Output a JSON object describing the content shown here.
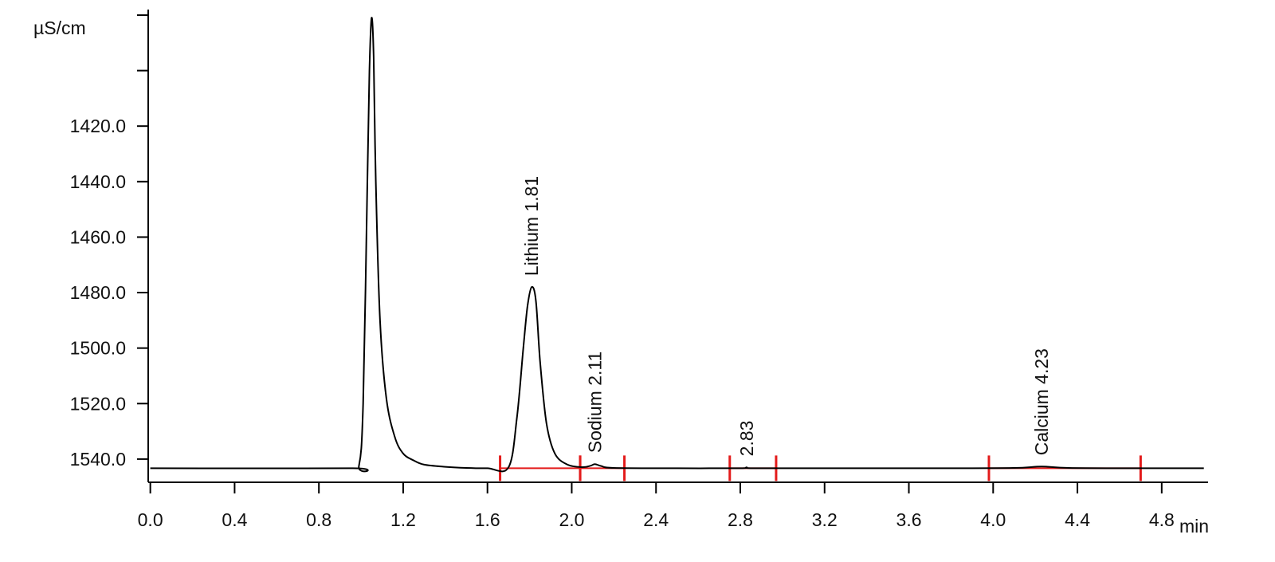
{
  "chart_data": {
    "type": "line",
    "title": "",
    "ylabel": "µS/cm",
    "xlabel": "min",
    "x_ticks": [
      0.0,
      0.4,
      0.8,
      1.2,
      1.6,
      2.0,
      2.4,
      2.8,
      3.2,
      3.6,
      4.0,
      4.4,
      4.8
    ],
    "x_tick_labels": [
      "0.0",
      "0.4",
      "0.8",
      "1.2",
      "1.6",
      "2.0",
      "2.4",
      "2.8",
      "3.2",
      "3.6",
      "4.0",
      "4.4",
      "4.8"
    ],
    "y_ticks": [
      1420.0,
      1440.0,
      1460.0,
      1480.0,
      1500.0,
      1520.0,
      1540.0
    ],
    "y_tick_labels": [
      "1420.0",
      "1440.0",
      "1460.0",
      "1480.0",
      "1500.0",
      "1520.0",
      "1540.0"
    ],
    "xlim": [
      -0.01,
      5.02
    ],
    "ylim": [
      1547.5,
      1378.0
    ],
    "baseline": 1543.3,
    "grid": false,
    "series": [
      {
        "color": "#000000",
        "x": [
          0.0,
          0.95,
          0.99,
          1.01,
          1.03,
          1.04,
          1.05,
          1.06,
          1.07,
          1.09,
          1.12,
          1.16,
          1.2,
          1.25,
          1.3,
          1.4,
          1.5,
          1.6,
          1.7,
          1.74,
          1.77,
          1.79,
          1.81,
          1.83,
          1.85,
          1.88,
          1.92,
          1.98,
          2.05,
          2.09,
          2.11,
          2.14,
          2.2,
          2.5,
          2.8,
          2.83,
          2.86,
          3.2,
          3.8,
          4.1,
          4.23,
          4.36,
          4.7,
          5.0
        ],
        "y": [
          1543.3,
          1543.3,
          1542.5,
          1520.0,
          1440.0,
          1400.0,
          1381.0,
          1395.0,
          1440.0,
          1490.0,
          1518.0,
          1532.0,
          1538.0,
          1540.5,
          1542.0,
          1542.8,
          1543.2,
          1543.3,
          1543.0,
          1525.0,
          1500.0,
          1485.0,
          1478.0,
          1483.0,
          1505.0,
          1527.0,
          1538.0,
          1542.0,
          1542.9,
          1542.4,
          1541.8,
          1542.5,
          1543.2,
          1543.3,
          1543.3,
          1543.0,
          1543.3,
          1543.3,
          1543.3,
          1543.2,
          1542.7,
          1543.2,
          1543.3,
          1543.3
        ]
      }
    ],
    "peaks": [
      {
        "label": "Lithium 1.81",
        "x": 1.81,
        "y": 1478.0
      },
      {
        "label": "Sodium 2.11",
        "x": 2.11,
        "y": 1541.8
      },
      {
        "label": "2.83",
        "x": 2.83,
        "y": 1543.0
      },
      {
        "label": "Calcium 4.23",
        "x": 4.23,
        "y": 1542.7
      }
    ],
    "integration_segments": [
      {
        "x1": 1.66,
        "x2": 2.04,
        "color": "#e31b1b"
      },
      {
        "x1": 2.04,
        "x2": 2.25,
        "color": "#e31b1b"
      },
      {
        "x1": 2.75,
        "x2": 2.97,
        "color": "#e31b1b"
      },
      {
        "x1": 3.98,
        "x2": 4.7,
        "color": "#e31b1b"
      }
    ]
  }
}
